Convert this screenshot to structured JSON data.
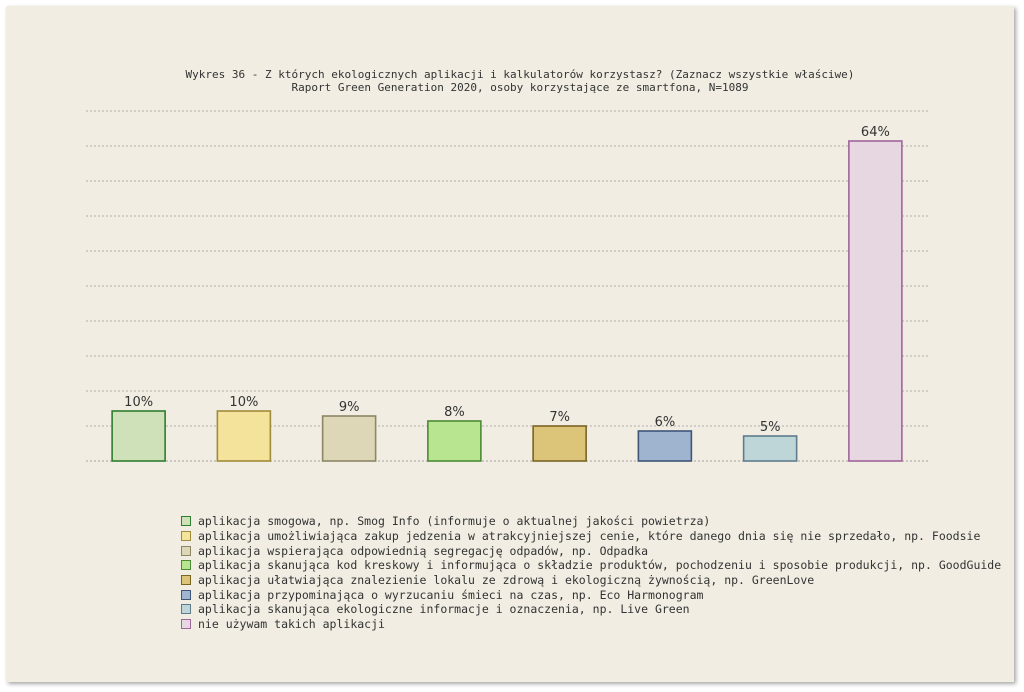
{
  "chart_data": {
    "type": "bar",
    "title": "Wykres 36 - Z których ekologicznych aplikacji i kalkulatorów korzystasz? (Zaznacz wszystkie właściwe)",
    "subtitle": "Raport Green Generation 2020, osoby korzystające ze smartfona, N=1089",
    "unit": "%",
    "ylim": [
      0,
      70
    ],
    "grid": true,
    "legend_position": "bottom",
    "series": [
      {
        "name": "aplikacja smogowa, np. Smog Info (informuje o aktualnej jakości powietrza)",
        "value": 10,
        "label": "10%",
        "fill": "#cfe1b9",
        "stroke": "#2f7d2f"
      },
      {
        "name": "aplikacja umożliwiająca zakup jedzenia w atrakcyjniejszej cenie, które danego dnia się nie sprzedało, np. Foodsie",
        "value": 10,
        "label": "10%",
        "fill": "#f4e39b",
        "stroke": "#a08a3b"
      },
      {
        "name": "aplikacja wspierająca odpowiednią segregację odpadów, np. Odpadka",
        "value": 9,
        "label": "9%",
        "fill": "#ddd7b7",
        "stroke": "#8d8665"
      },
      {
        "name": "aplikacja skanująca kod kreskowy i informująca o składzie produktów, pochodzeniu i sposobie produkcji, np. GoodGuide",
        "value": 8,
        "label": "8%",
        "fill": "#b8e58f",
        "stroke": "#4b8a34"
      },
      {
        "name": "aplikacja ułatwiająca znalezienie lokalu ze zdrową i ekologiczną żywnością, np. GreenLove",
        "value": 7,
        "label": "7%",
        "fill": "#dcc579",
        "stroke": "#7a6424"
      },
      {
        "name": "aplikacja przypominająca o wyrzucaniu śmieci na czas, np. Eco Harmonogram",
        "value": 6,
        "label": "6%",
        "fill": "#9fb4cf",
        "stroke": "#3e5578"
      },
      {
        "name": "aplikacja skanująca ekologiczne informacje i oznaczenia, np. Live Green",
        "value": 5,
        "label": "5%",
        "fill": "#bfd6d8",
        "stroke": "#5f7b8c"
      },
      {
        "name": "nie używam takich aplikacji",
        "value": 64,
        "label": "64%",
        "fill": "#e7d7e0",
        "stroke": "#a0659a"
      }
    ]
  }
}
